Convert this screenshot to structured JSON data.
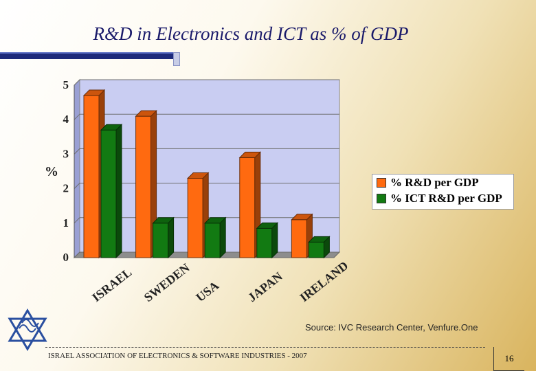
{
  "slide": {
    "title": "R&D in Electronics and ICT as % of GDP",
    "source": "Source: IVC Research Center, Venfure.One",
    "footer": "ISRAEL ASSOCIATION OF ELECTRONICS & SOFTWARE INDUSTRIES  - 2007",
    "page_number": "16"
  },
  "colors": {
    "rd": "#ff6a10",
    "ict": "#127a12",
    "plot_bg": "#c9cdf2",
    "title": "#1a1a6a"
  },
  "chart_data": {
    "type": "bar",
    "categories": [
      "ISRAEL",
      "SWEDEN",
      "USA",
      "JAPAN",
      "IRELAND"
    ],
    "series": [
      {
        "name": "% R&D per GDP",
        "values": [
          4.7,
          4.1,
          2.3,
          2.9,
          1.1
        ]
      },
      {
        "name": "% ICT R&D per GDP",
        "values": [
          3.7,
          1.0,
          1.0,
          0.85,
          0.45
        ]
      }
    ],
    "ylabel": "%",
    "ylim": [
      0,
      5
    ],
    "yticks": [
      "0",
      "1",
      "2",
      "3",
      "4",
      "5"
    ],
    "grid": true,
    "legend": "right",
    "view": "3d"
  }
}
